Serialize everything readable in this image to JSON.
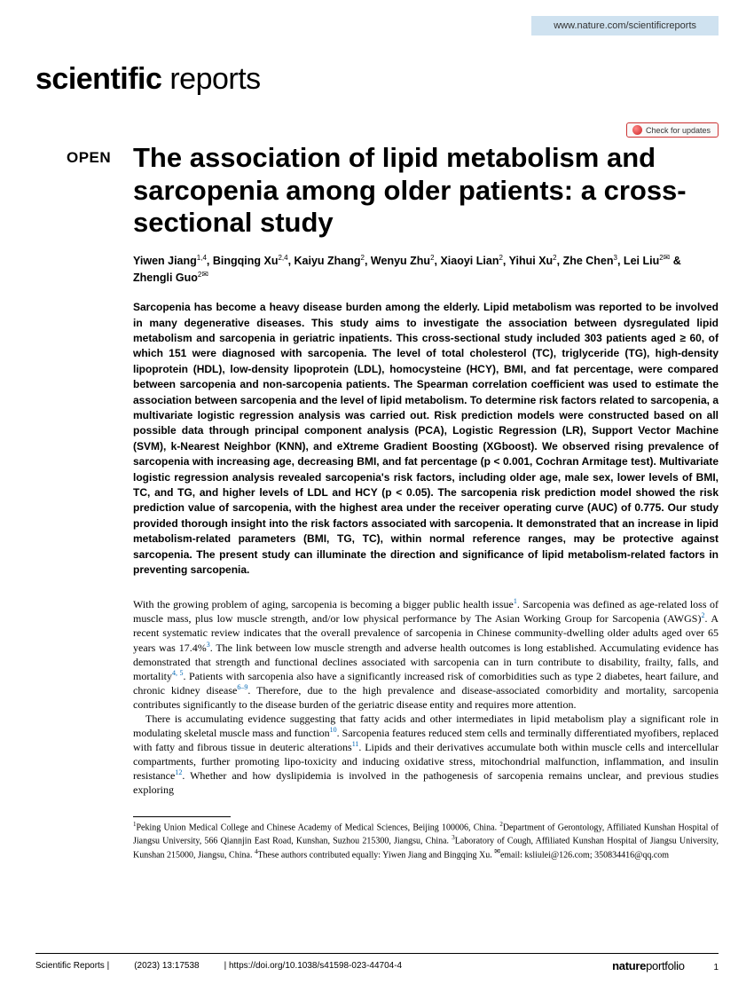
{
  "header": {
    "url": "www.nature.com/scientificreports"
  },
  "journal": {
    "logo_bold": "scientific",
    "logo_light": " reports"
  },
  "badge": {
    "text": "Check for updates"
  },
  "open_label": "OPEN",
  "title": "The association of lipid metabolism and sarcopenia among older patients: a cross-sectional study",
  "authors_html": "Yiwen Jiang<sup>1,4</sup>, Bingqing Xu<sup>2,4</sup>, Kaiyu Zhang<sup>2</sup>, Wenyu Zhu<sup>2</sup>, Xiaoyi Lian<sup>2</sup>, Yihui Xu<sup>2</sup>, Zhe Chen<sup>3</sup>, Lei Liu<sup>2<span class=\"mail\">✉</span></sup> & Zhengli Guo<sup>2<span class=\"mail\">✉</span></sup>",
  "abstract": "Sarcopenia has become a heavy disease burden among the elderly. Lipid metabolism was reported to be involved in many degenerative diseases. This study aims to investigate the association between dysregulated lipid metabolism and sarcopenia in geriatric inpatients. This cross-sectional study included 303 patients aged ≥ 60, of which 151 were diagnosed with sarcopenia. The level of total cholesterol (TC), triglyceride (TG), high-density lipoprotein (HDL), low-density lipoprotein (LDL), homocysteine (HCY), BMI, and fat percentage, were compared between sarcopenia and non-sarcopenia patients. The Spearman correlation coefficient was used to estimate the association between sarcopenia and the level of lipid metabolism. To determine risk factors related to sarcopenia, a multivariate logistic regression analysis was carried out. Risk prediction models were constructed based on all possible data through principal component analysis (PCA), Logistic Regression (LR), Support Vector Machine (SVM), k-Nearest Neighbor (KNN), and eXtreme Gradient Boosting (XGboost). We observed rising prevalence of sarcopenia with increasing age, decreasing BMI, and fat percentage (p < 0.001, Cochran Armitage test). Multivariate logistic regression analysis revealed sarcopenia's risk factors, including older age, male sex, lower levels of BMI, TC, and TG, and higher levels of LDL and HCY (p < 0.05). The sarcopenia risk prediction model showed the risk prediction value of sarcopenia, with the highest area under the receiver operating curve (AUC) of 0.775. Our study provided thorough insight into the risk factors associated with sarcopenia. It demonstrated that an increase in lipid metabolism-related parameters (BMI, TG, TC), within normal reference ranges, may be protective against sarcopenia. The present study can illuminate the direction and significance of lipid metabolism-related factors in preventing sarcopenia.",
  "body": {
    "p1": "With the growing problem of aging, sarcopenia is becoming a bigger public health issue<sup class=\"ref\">1</sup>. Sarcopenia was defined as age-related loss of muscle mass, plus low muscle strength, and/or low physical performance by The Asian Working Group for Sarcopenia (AWGS)<sup class=\"ref\">2</sup>. A recent systematic review indicates that the overall prevalence of sarcopenia in Chinese community-dwelling older adults aged over 65 years was 17.4%<sup class=\"ref\">3</sup>. The link between low muscle strength and adverse health outcomes is long established. Accumulating evidence has demonstrated that strength and functional declines associated with sarcopenia can in turn contribute to disability, frailty, falls, and mortality<sup class=\"ref\">4, 5</sup>. Patients with sarcopenia also have a significantly increased risk of comorbidities such as type 2 diabetes, heart failure, and chronic kidney disease<sup class=\"ref\">6–9</sup>. Therefore, due to the high prevalence and disease-associated comorbidity and mortality, sarcopenia contributes significantly to the disease burden of the geriatric disease entity and requires more attention.",
    "p2": "There is accumulating evidence suggesting that fatty acids and other intermediates in lipid metabolism play a significant role in modulating skeletal muscle mass and function<sup class=\"ref\">10</sup>. Sarcopenia features reduced stem cells and terminally differentiated myofibers, replaced with fatty and fibrous tissue in deuteric alterations<sup class=\"ref\">11</sup>. Lipids and their derivatives accumulate both within muscle cells and intercellular compartments, further promoting lipo-toxicity and inducing oxidative stress, mitochondrial malfunction, inflammation, and insulin resistance<sup class=\"ref\">12</sup>. Whether and how dyslipidemia is involved in the pathogenesis of sarcopenia remains unclear, and previous studies exploring"
  },
  "affiliations": "<sup>1</sup>Peking Union Medical College and Chinese Academy of Medical Sciences, Beijing 100006, China. <sup>2</sup>Department of Gerontology, Affiliated Kunshan Hospital of Jiangsu University, 566 Qiannjin East Road, Kunshan, Suzhou 215300, Jiangsu, China. <sup>3</sup>Laboratory of Cough, Affiliated Kunshan Hospital of Jiangsu University, Kunshan 215000, Jiangsu, China. <sup>4</sup>These authors contributed equally: Yiwen Jiang and Bingqing Xu. <sup class=\"mailto\">✉</sup>email: ksliulei@126.com; 350834416@qq.com",
  "footer": {
    "journal": "Scientific Reports |",
    "citation": "(2023) 13:17538",
    "doi": "| https://doi.org/10.1038/s41598-023-44704-4",
    "logo_bold": "nature",
    "logo_light": "portfolio",
    "page": "1"
  }
}
